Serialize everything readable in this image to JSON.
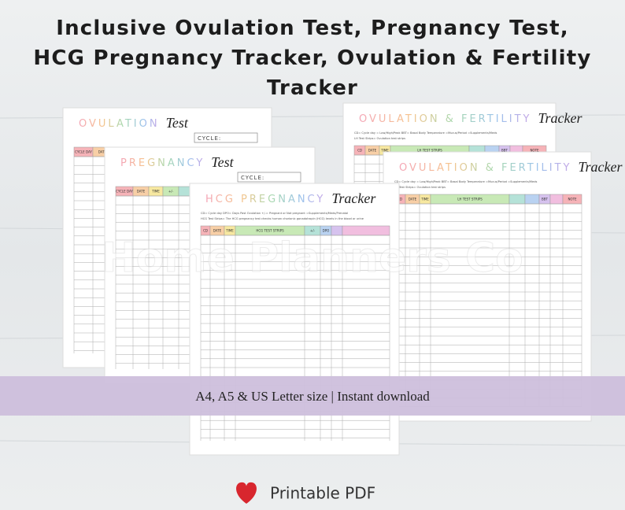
{
  "header": {
    "title_lines": [
      "Inclusive Ovulation Test, Pregnancy Test,",
      "HCG Pregnancy Tracker, Ovulation & Fertility",
      "Tracker"
    ]
  },
  "watermark": "Home Planners Co",
  "pages": [
    {
      "title": "OVULATION",
      "title_script": "Test",
      "cycle_label": "CYCLE:",
      "columns": [
        "CYCLE DAY",
        "DATE"
      ]
    },
    {
      "title": "PREGNANCY",
      "title_script": "Test",
      "cycle_label": "CYCLE:",
      "columns": [
        "CYCLE DAY",
        "DATE",
        "TIME",
        "+/-"
      ]
    },
    {
      "title": "OVULATION & FERTILITY",
      "title_script": "Tracker",
      "legend": [
        "CD= Cycle day   = Low/High/Peak   BBT= Basal Body Temperature   =Mucus/Period   =Supplements/Meds",
        "LH Test Strips= Ovulation test strips"
      ],
      "columns": [
        "CD",
        "DATE",
        "TIME",
        "LH TEST STRIPS",
        "BBT",
        "NOTE"
      ]
    },
    {
      "title": "OVULATION & FERTILITY",
      "title_script": "Tracker",
      "legend": [
        "CD= Cycle day   = Low/High/Peak   BBT= Basal Body Temperature   =Mucus/Period   =Supplements/Meds",
        "LH Test Strips= Ovulation test strips"
      ],
      "columns": [
        "CD",
        "DATE",
        "TIME",
        "LH TEST STRIPS",
        "BBT",
        "NOTE"
      ]
    },
    {
      "title": "HCG PREGNANCY",
      "title_script": "Tracker",
      "legend": [
        "CD= Cycle day   DPO= Days Past Ovulation   +/-= Pregnant or Not pregnant   =Supplements/Meds/Prenatal",
        "HCG Test Strips= The HCG pregnancy test checks human chorionic gonadotropin (HCG) levels in the blood or urine"
      ],
      "columns": [
        "CD",
        "DATE",
        "TIME",
        "HCG TEST STRIPS",
        "+/-",
        "DPO"
      ]
    }
  ],
  "banner": "A4, A5 &  US Letter size  | Instant download",
  "footer": "Printable PDF"
}
